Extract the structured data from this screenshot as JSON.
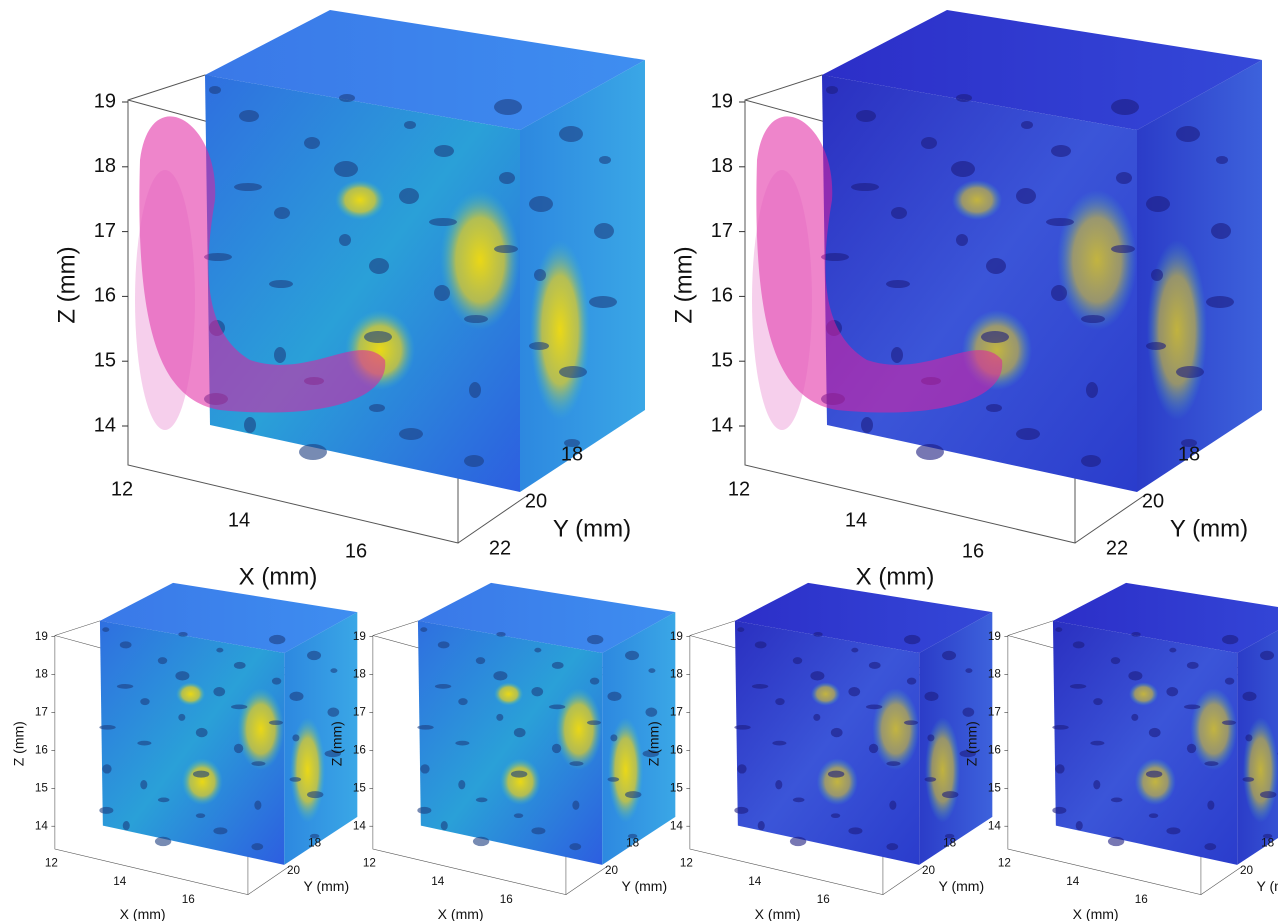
{
  "panels": [
    {
      "x_label": "X (mm)",
      "y_label": "Y (mm)",
      "z_label": "Z (mm)",
      "xticks": [
        12,
        14,
        16
      ],
      "yticks": [
        18,
        20,
        22
      ],
      "zticks": [
        19,
        18,
        17,
        16,
        15,
        14
      ]
    },
    {
      "x_label": "X (mm)",
      "y_label": "Y (mm)",
      "z_label": "Z (mm)",
      "xticks": [
        12,
        14,
        16
      ],
      "yticks": [
        18,
        20,
        22
      ],
      "zticks": [
        19,
        18,
        17,
        16,
        15,
        14
      ]
    },
    {
      "x_label": "X (mm)",
      "y_label": "Y (mm)",
      "z_label": "Z (mm)",
      "xticks": [
        12,
        14,
        16
      ],
      "yticks": [
        18,
        20
      ],
      "zticks": [
        19,
        18,
        17,
        16,
        15,
        14
      ]
    },
    {
      "x_label": "X (mm)",
      "y_label": "Y (mm)",
      "z_label": "Z (mm)",
      "xticks": [
        12,
        14,
        16
      ],
      "yticks": [
        18,
        20
      ],
      "zticks": [
        19,
        18,
        17,
        16,
        15,
        14
      ]
    },
    {
      "x_label": "X (mm)",
      "y_label": "Y (mm)",
      "z_label": "Z (mm)",
      "xticks": [
        12,
        14,
        16
      ],
      "yticks": [
        18,
        20
      ],
      "zticks": [
        19,
        18,
        17,
        16,
        15,
        14
      ]
    },
    {
      "x_label": "X (mm)",
      "y_label": "Y (mm)",
      "z_label": "Z (mm)",
      "xticks": [
        12,
        14,
        16
      ],
      "yticks": [
        18,
        20
      ],
      "zticks": [
        19,
        18,
        17,
        16,
        15,
        14
      ]
    }
  ]
}
